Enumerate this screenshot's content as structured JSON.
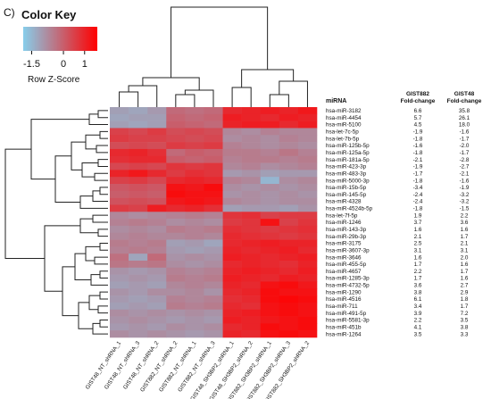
{
  "panel_label": "C)",
  "chart_data": {
    "type": "heatmap",
    "color_key": {
      "title": "Color Key",
      "axis_label": "Row Z-Score",
      "ticks": [
        "-1.5",
        "0",
        "1"
      ],
      "range": [
        -1.9,
        1.6
      ],
      "low_color": "#87ceeb",
      "high_color": "#ff0000"
    },
    "columns": [
      "GIST48_NT_shRNA_1",
      "GIST48_NT_shRNA_3",
      "GIST48_NT_shRNA_2",
      "GIST882_NT_shRNA_2",
      "GIST882_NT_shRNA_1",
      "GIST882_NT_shRNA_3",
      "GIST48_SH3BP2_shRNA_1",
      "GIST48_SH3BP2_shRNA_2",
      "GIST882_SH3BP2_shRNA_1",
      "GIST882_SH3BP2_shRNA_3",
      "GIST882_SH3BP2_shRNA_2"
    ],
    "table_headers": {
      "mirna": "miRNA",
      "gist882": [
        "GIST882",
        "Fold-change"
      ],
      "gist48": [
        "GIST48",
        "Fold-change"
      ]
    },
    "rows": [
      {
        "mirna": "hsa-miR-3182",
        "gist882": "6.6",
        "gist48": "35.8"
      },
      {
        "mirna": "hsa-miR-4454",
        "gist882": "5.7",
        "gist48": "26.1"
      },
      {
        "mirna": "hsa-miR-5100",
        "gist882": "4.5",
        "gist48": "18.0"
      },
      {
        "mirna": "hsa-let-7c-5p",
        "gist882": "-1.9",
        "gist48": "-1.6"
      },
      {
        "mirna": "hsa-let-7b-5p",
        "gist882": "-1.8",
        "gist48": "-1.7"
      },
      {
        "mirna": "hsa-miR-125b-5p",
        "gist882": "-1.6",
        "gist48": "-2.0"
      },
      {
        "mirna": "hsa-miR-125a-5p",
        "gist882": "-1.8",
        "gist48": "-1.7"
      },
      {
        "mirna": "hsa-miR-181a-5p",
        "gist882": "-2.1",
        "gist48": "-2.8"
      },
      {
        "mirna": "hsa-miR-423-3p",
        "gist882": "-1.9",
        "gist48": "-2.7"
      },
      {
        "mirna": "hsa-miR-483-3p",
        "gist882": "-1.7",
        "gist48": "-2.1"
      },
      {
        "mirna": "hsa-miR-5000-3p",
        "gist882": "-1.8",
        "gist48": "-1.6"
      },
      {
        "mirna": "hsa-miR-15b-5p",
        "gist882": "-3.4",
        "gist48": "-1.9"
      },
      {
        "mirna": "hsa-miR-145-5p",
        "gist882": "-2.4",
        "gist48": "-3.2"
      },
      {
        "mirna": "hsa-miR-4328",
        "gist882": "-2.4",
        "gist48": "-3.2"
      },
      {
        "mirna": "hsa-miR-4524b-5p",
        "gist882": "-1.8",
        "gist48": "-1.5"
      },
      {
        "mirna": "hsa-let-7f-5p",
        "gist882": "1.9",
        "gist48": "2.2"
      },
      {
        "mirna": "hsa-miR-1246",
        "gist882": "3.7",
        "gist48": "3.6"
      },
      {
        "mirna": "hsa-miR-143-3p",
        "gist882": "1.6",
        "gist48": "1.6"
      },
      {
        "mirna": "hsa-miR-29b-3p",
        "gist882": "2.1",
        "gist48": "1.7"
      },
      {
        "mirna": "hsa-miR-3175",
        "gist882": "2.5",
        "gist48": "2.1"
      },
      {
        "mirna": "hsa-miR-3607-3p",
        "gist882": "3.1",
        "gist48": "3.1"
      },
      {
        "mirna": "hsa-miR-3646",
        "gist882": "1.6",
        "gist48": "2.0"
      },
      {
        "mirna": "hsa-miR-455-5p",
        "gist882": "1.7",
        "gist48": "1.6"
      },
      {
        "mirna": "hsa-miR-4657",
        "gist882": "2.2",
        "gist48": "1.7"
      },
      {
        "mirna": "hsa-miR-1285-3p",
        "gist882": "1.7",
        "gist48": "1.6"
      },
      {
        "mirna": "hsa-miR-4732-5p",
        "gist882": "3.6",
        "gist48": "2.7"
      },
      {
        "mirna": "hsa-miR-1290",
        "gist882": "3.8",
        "gist48": "2.9"
      },
      {
        "mirna": "hsa-miR-4516",
        "gist882": "6.1",
        "gist48": "1.8"
      },
      {
        "mirna": "hsa-miR-711",
        "gist882": "3.4",
        "gist48": "1.7"
      },
      {
        "mirna": "hsa-miR-491-5p",
        "gist882": "3.9",
        "gist48": "7.2"
      },
      {
        "mirna": "hsa-miR-5581-3p",
        "gist882": "2.2",
        "gist48": "3.5"
      },
      {
        "mirna": "hsa-miR-451b",
        "gist882": "4.1",
        "gist48": "3.8"
      },
      {
        "mirna": "hsa-miR-1264",
        "gist882": "3.5",
        "gist48": "3.3"
      }
    ],
    "z_scores": [
      [
        -1.1,
        -1.2,
        -1.0,
        -0.2,
        -0.3,
        -0.2,
        0.9,
        1.0,
        1.1,
        1.0,
        1.2
      ],
      [
        -1.2,
        -1.1,
        -1.1,
        -0.1,
        -0.2,
        -0.1,
        1.1,
        1.0,
        0.9,
        1.1,
        1.0
      ],
      [
        -1.1,
        -1.2,
        -1.1,
        0.0,
        -0.1,
        -0.2,
        1.0,
        1.1,
        1.1,
        0.9,
        1.1
      ],
      [
        0.5,
        0.4,
        0.6,
        0.3,
        0.4,
        0.3,
        -0.7,
        -0.8,
        -0.6,
        -0.7,
        -0.7
      ],
      [
        0.6,
        0.5,
        0.5,
        0.4,
        0.3,
        0.4,
        -0.8,
        -0.7,
        -0.8,
        -0.6,
        -0.7
      ],
      [
        0.3,
        0.4,
        0.3,
        0.6,
        0.5,
        0.6,
        -0.6,
        -0.7,
        -0.8,
        -0.7,
        -0.8
      ],
      [
        0.9,
        1.0,
        0.8,
        -0.2,
        0.0,
        -0.1,
        -0.5,
        -0.5,
        -0.6,
        -0.4,
        -0.6
      ],
      [
        0.8,
        0.9,
        0.9,
        0.0,
        -0.1,
        0.0,
        -0.6,
        -0.5,
        -0.5,
        -0.6,
        -0.5
      ],
      [
        0.4,
        0.5,
        0.4,
        0.7,
        0.6,
        0.7,
        -0.7,
        -0.6,
        -0.8,
        -0.7,
        -0.6
      ],
      [
        1.0,
        1.2,
        0.9,
        0.6,
        0.8,
        0.7,
        -1.0,
        -0.9,
        -1.1,
        -1.0,
        -1.0
      ],
      [
        0.5,
        0.6,
        0.4,
        0.9,
        1.0,
        0.9,
        -0.6,
        -0.7,
        -1.5,
        -0.8,
        -0.7
      ],
      [
        0.1,
        0.2,
        0.1,
        1.3,
        1.2,
        1.4,
        -0.8,
        -0.9,
        -0.8,
        -0.9,
        -0.8
      ],
      [
        0.0,
        0.1,
        0.0,
        1.4,
        1.3,
        1.3,
        -0.9,
        -0.8,
        -0.9,
        -0.8,
        -0.9
      ],
      [
        0.2,
        0.3,
        0.2,
        1.2,
        1.3,
        1.2,
        -0.7,
        -0.8,
        -0.9,
        -0.8,
        -0.8
      ],
      [
        0.6,
        0.5,
        1.1,
        0.9,
        1.0,
        0.8,
        -1.1,
        -1.0,
        -1.0,
        -1.1,
        -0.9
      ],
      [
        -0.7,
        -0.8,
        -0.7,
        -0.6,
        -0.5,
        -0.6,
        0.7,
        0.8,
        0.5,
        0.6,
        0.6
      ],
      [
        -0.6,
        -0.5,
        -0.6,
        -0.8,
        -0.7,
        -0.8,
        0.6,
        0.7,
        1.3,
        0.5,
        0.7
      ],
      [
        -0.8,
        -0.7,
        -0.8,
        -0.5,
        -0.6,
        -0.5,
        0.8,
        0.7,
        0.6,
        0.7,
        0.8
      ],
      [
        -0.7,
        -0.6,
        -0.7,
        -0.7,
        -0.6,
        -0.7,
        0.9,
        0.8,
        0.7,
        0.6,
        0.7
      ],
      [
        -0.5,
        -0.6,
        -0.5,
        -1.1,
        -1.0,
        -1.2,
        0.9,
        1.0,
        1.1,
        1.0,
        1.0
      ],
      [
        -0.6,
        -0.5,
        -0.6,
        -1.0,
        -1.1,
        -1.0,
        1.0,
        0.9,
        1.0,
        1.1,
        0.9
      ],
      [
        -0.3,
        -1.2,
        -0.2,
        -0.9,
        -0.8,
        -0.9,
        1.1,
        1.0,
        0.9,
        1.0,
        1.1
      ],
      [
        -0.4,
        -0.5,
        -0.4,
        -0.8,
        -0.9,
        -0.8,
        0.9,
        1.0,
        0.9,
        0.8,
        1.0
      ],
      [
        -0.9,
        -1.0,
        -0.9,
        -0.6,
        -0.7,
        -0.6,
        1.0,
        1.1,
        1.0,
        0.9,
        1.1
      ],
      [
        -1.0,
        -0.9,
        -1.0,
        -0.5,
        -0.6,
        -0.5,
        1.1,
        1.0,
        0.9,
        1.1,
        1.0
      ],
      [
        -1.1,
        -1.0,
        -1.1,
        -0.7,
        -0.6,
        -0.7,
        1.0,
        0.9,
        1.3,
        1.4,
        1.2
      ],
      [
        -0.9,
        -1.0,
        -0.8,
        -0.8,
        -0.7,
        -0.9,
        0.9,
        1.0,
        1.4,
        1.3,
        1.3
      ],
      [
        -1.0,
        -1.1,
        -1.0,
        -0.6,
        -0.7,
        -0.6,
        0.8,
        0.9,
        1.4,
        1.5,
        1.4
      ],
      [
        -1.1,
        -1.0,
        -1.1,
        -0.5,
        -0.6,
        -0.5,
        0.9,
        0.8,
        1.3,
        1.4,
        1.3
      ],
      [
        -0.8,
        -0.9,
        -0.8,
        -0.9,
        -0.8,
        -0.9,
        1.0,
        1.1,
        1.3,
        1.4,
        1.3
      ],
      [
        -0.9,
        -0.8,
        -0.9,
        -1.0,
        -0.9,
        -1.0,
        1.1,
        1.0,
        1.2,
        1.3,
        1.4
      ],
      [
        -1.0,
        -0.9,
        -1.0,
        -0.8,
        -0.9,
        -0.8,
        0.9,
        1.0,
        1.4,
        1.3,
        1.4
      ],
      [
        -0.8,
        -0.9,
        -0.8,
        -0.9,
        -1.0,
        -0.9,
        1.0,
        0.9,
        1.3,
        1.4,
        1.3
      ]
    ]
  }
}
